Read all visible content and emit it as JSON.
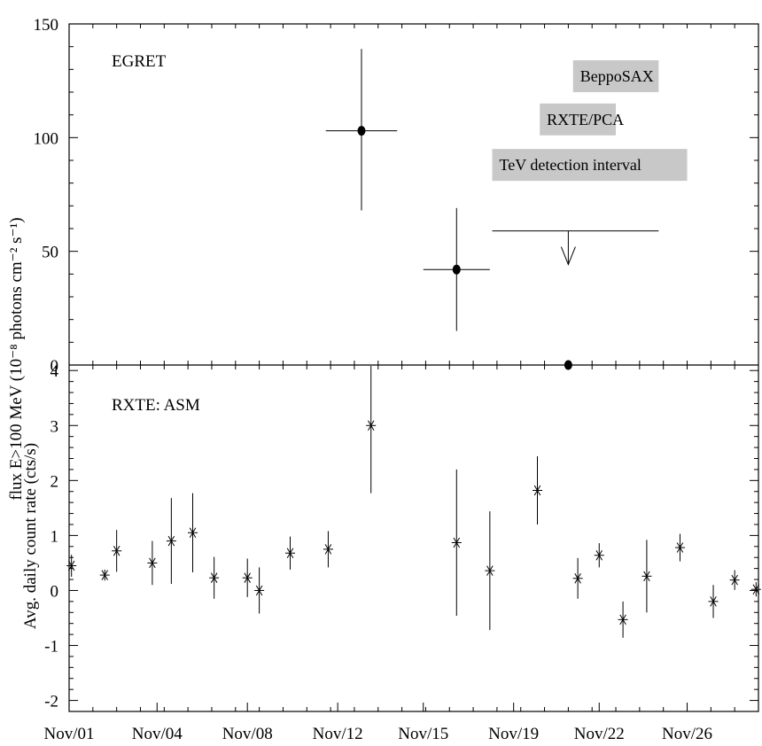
{
  "chart_data": [
    {
      "type": "scatter",
      "panel": "top",
      "panel_label": "EGRET",
      "ylabel": "flux E>100 MeV (10⁻⁸ photons cm⁻² s⁻¹)",
      "ylim": [
        0,
        150
      ],
      "yticks": [
        "0",
        "50",
        "100",
        "150"
      ],
      "xlim_days": [
        0,
        29
      ],
      "series": [
        {
          "points": [
            {
              "x": 12.3,
              "xerr_lo": 1.5,
              "xerr_hi": 1.5,
              "y": 103,
              "yerr_lo": 35,
              "yerr_hi": 36
            },
            {
              "x": 16.3,
              "xerr_lo": 1.4,
              "xerr_hi": 1.4,
              "y": 42,
              "yerr_lo": 27,
              "yerr_hi": 27
            },
            {
              "x": 21.0,
              "y": 0
            }
          ],
          "upper_limits": [
            {
              "x_from": 17.8,
              "x_to": 24.8,
              "y": 59,
              "arrow_x": 21.0
            }
          ]
        }
      ],
      "annotations": [
        {
          "text": "BeppoSAX",
          "x_from": 21.2,
          "x_to": 24.8,
          "y": 127
        },
        {
          "text": "RXTE/PCA",
          "x_from": 19.8,
          "x_to": 23.0,
          "y": 108
        },
        {
          "text": "TeV detection interval",
          "x_from": 17.8,
          "x_to": 26.0,
          "y": 88
        }
      ]
    },
    {
      "type": "scatter",
      "panel": "bottom",
      "panel_label": "RXTE: ASM",
      "ylabel": "Avg. daily count rate (cts/s)",
      "ylim": [
        -2.2,
        4.1
      ],
      "yticks": [
        "-2",
        "-1",
        "0",
        "1",
        "2",
        "3",
        "4"
      ],
      "xlim_days": [
        0,
        29
      ],
      "xticks": [
        {
          "label": "Nov/01",
          "x": 0
        },
        {
          "label": "Nov/04",
          "x": 3.7
        },
        {
          "label": "Nov/08",
          "x": 7.5
        },
        {
          "label": "Nov/12",
          "x": 11.3
        },
        {
          "label": "Nov/15",
          "x": 14.9
        },
        {
          "label": "Nov/19",
          "x": 18.7
        },
        {
          "label": "Nov/22",
          "x": 22.3
        },
        {
          "label": "Nov/26",
          "x": 26.0
        }
      ],
      "series": [
        {
          "points": [
            {
              "x": 0.1,
              "y": 0.45,
              "err": 0.2
            },
            {
              "x": 1.5,
              "y": 0.28,
              "err": 0.1
            },
            {
              "x": 2.0,
              "y": 0.72,
              "err": 0.38
            },
            {
              "x": 3.5,
              "y": 0.5,
              "err": 0.4
            },
            {
              "x": 4.3,
              "y": 0.9,
              "err": 0.78
            },
            {
              "x": 5.2,
              "y": 1.05,
              "err": 0.72
            },
            {
              "x": 6.1,
              "y": 0.23,
              "err": 0.38
            },
            {
              "x": 7.5,
              "y": 0.23,
              "err": 0.35
            },
            {
              "x": 8.0,
              "y": 0.0,
              "err": 0.42
            },
            {
              "x": 9.3,
              "y": 0.68,
              "err": 0.3
            },
            {
              "x": 10.9,
              "y": 0.75,
              "err": 0.33
            },
            {
              "x": 12.7,
              "y": 3.0,
              "err": 1.23
            },
            {
              "x": 16.3,
              "y": 0.87,
              "err": 1.33
            },
            {
              "x": 17.7,
              "y": 0.36,
              "err": 1.08
            },
            {
              "x": 19.7,
              "y": 1.82,
              "err": 0.62
            },
            {
              "x": 21.4,
              "y": 0.22,
              "err": 0.37
            },
            {
              "x": 22.3,
              "y": 0.64,
              "err": 0.22
            },
            {
              "x": 23.3,
              "y": -0.53,
              "err": 0.33
            },
            {
              "x": 24.3,
              "y": 0.26,
              "err": 0.66
            },
            {
              "x": 25.7,
              "y": 0.78,
              "err": 0.25
            },
            {
              "x": 27.1,
              "y": -0.2,
              "err": 0.3
            },
            {
              "x": 28.0,
              "y": 0.19,
              "err": 0.18
            },
            {
              "x": 28.9,
              "y": 0.02,
              "err": 0.13
            }
          ]
        }
      ]
    }
  ]
}
